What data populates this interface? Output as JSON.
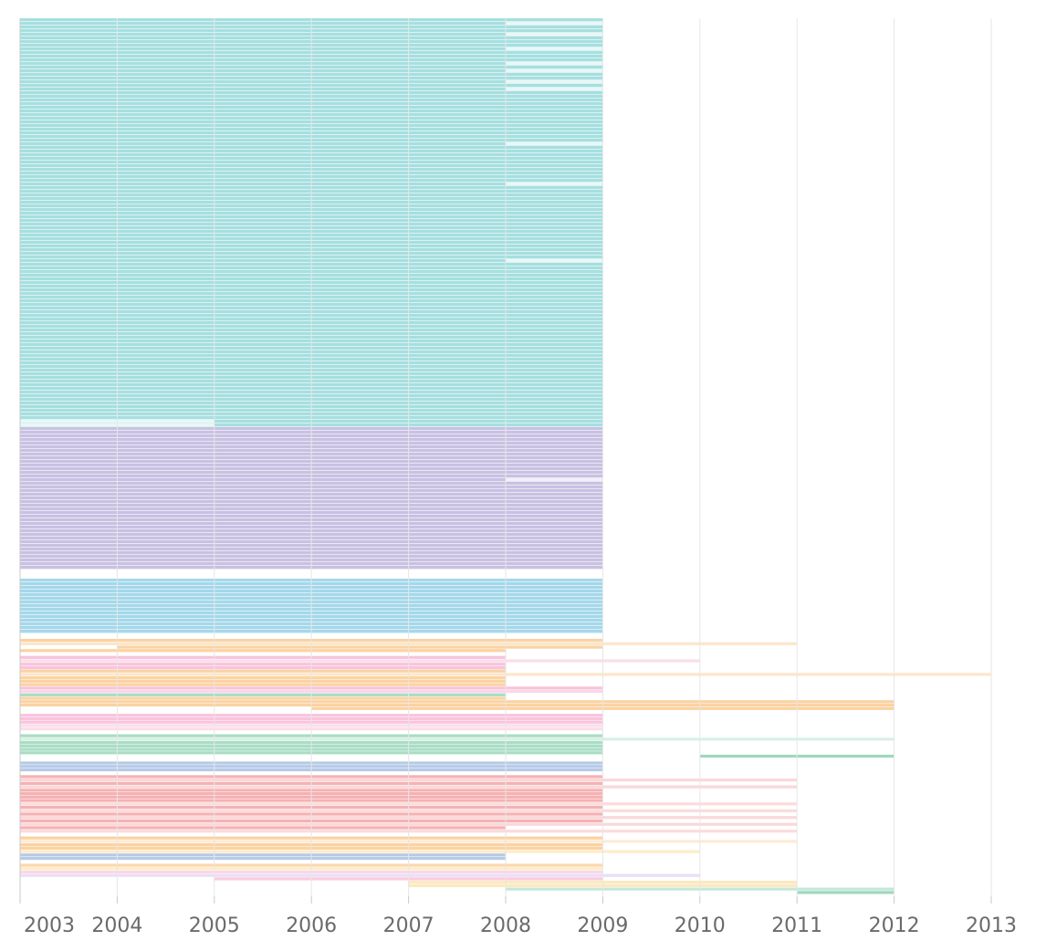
{
  "chart_data": {
    "type": "bar",
    "orientation": "horizontal-timeline",
    "x_ticks": [
      2003,
      2004,
      2005,
      2006,
      2007,
      2008,
      2009,
      2010,
      2011,
      2012,
      2013
    ],
    "x_tick_labels": [
      "2003",
      "2004",
      "2005",
      "2006",
      "2007",
      "2008",
      "2009",
      "2010",
      "2011",
      "2012",
      "2013"
    ],
    "xlim": [
      2002.7,
      2013.3
    ],
    "grid": true,
    "legend": "none",
    "colors": {
      "teal": "#a6dfe0",
      "purple": "#c9c1e2",
      "blue": "#a4d8ea",
      "orange": "#fbcd98",
      "pink": "#f8bdd8",
      "green": "#9ed9be",
      "steel": "#aec4e4",
      "red": "#f5a8aa",
      "lavender": "#e2d0ef",
      "yellow": "#fbe0a4",
      "gap": "#ffffff"
    },
    "groups": [
      {
        "color": "teal",
        "rows": 112,
        "start": 2003,
        "end": 2009
      },
      {
        "color": "purple",
        "rows": 39,
        "start": 2003,
        "end": 2009
      },
      {
        "color": "blue",
        "rows": 15,
        "start": 2003,
        "end": 2009
      }
    ],
    "segments": [
      {
        "row": 110,
        "color": "gap",
        "start": 2003,
        "end": 2005
      },
      {
        "row": 111,
        "color": "gap",
        "start": 2003,
        "end": 2005
      },
      {
        "row": 1,
        "color": "gap",
        "start": 2008,
        "end": 2009
      },
      {
        "row": 4,
        "color": "gap",
        "start": 2008,
        "end": 2009
      },
      {
        "row": 8,
        "color": "gap",
        "start": 2008,
        "end": 2009
      },
      {
        "row": 12,
        "color": "gap",
        "start": 2008,
        "end": 2009
      },
      {
        "row": 14,
        "color": "gap",
        "start": 2008,
        "end": 2009
      },
      {
        "row": 17,
        "color": "gap",
        "start": 2008,
        "end": 2009
      },
      {
        "row": 19,
        "color": "gap",
        "start": 2008,
        "end": 2009
      },
      {
        "row": 34,
        "color": "gap",
        "start": 2008,
        "end": 2009
      },
      {
        "row": 45,
        "color": "gap",
        "start": 2008,
        "end": 2009
      },
      {
        "row": 66,
        "color": "gap",
        "start": 2008,
        "end": 2009
      },
      {
        "row": 126,
        "color": "gap",
        "start": 2008,
        "end": 2009
      }
    ],
    "lower_rows": [
      {
        "color": "orange",
        "start": 2003,
        "end": 2009,
        "alpha": 0.9
      },
      {
        "color": "orange",
        "start": 2003,
        "end": 2011,
        "alpha": 0.5
      },
      {
        "color": "orange",
        "start": 2004,
        "end": 2009,
        "alpha": 0.9
      },
      {
        "color": "orange",
        "start": 2003,
        "end": 2008,
        "alpha": 0.9
      },
      {
        "color": "gap",
        "start": 2003,
        "end": 2009,
        "alpha": 1
      },
      {
        "color": "pink",
        "start": 2003,
        "end": 2008,
        "alpha": 0.9
      },
      {
        "color": "pink",
        "start": 2003,
        "end": 2010,
        "alpha": 0.5
      },
      {
        "color": "pink",
        "start": 2003,
        "end": 2008,
        "alpha": 0.9
      },
      {
        "color": "pink",
        "start": 2003,
        "end": 2008,
        "alpha": 0.9
      },
      {
        "color": "orange",
        "start": 2003,
        "end": 2008,
        "alpha": 0.9
      },
      {
        "color": "orange",
        "start": 2003,
        "end": 2013,
        "alpha": 0.5
      },
      {
        "color": "orange",
        "start": 2003,
        "end": 2008,
        "alpha": 0.9
      },
      {
        "color": "orange",
        "start": 2003,
        "end": 2008,
        "alpha": 0.9
      },
      {
        "color": "orange",
        "start": 2003,
        "end": 2008,
        "alpha": 0.9
      },
      {
        "color": "pink",
        "start": 2003,
        "end": 2009,
        "alpha": 0.9
      },
      {
        "color": "pink",
        "start": 2003,
        "end": 2009,
        "alpha": 0.6
      },
      {
        "color": "green",
        "start": 2003,
        "end": 2008,
        "alpha": 0.9
      },
      {
        "color": "orange",
        "start": 2003,
        "end": 2008,
        "alpha": 0.9
      },
      {
        "color": "orange",
        "start": 2003,
        "end": 2012,
        "alpha": 0.9
      },
      {
        "color": "orange",
        "start": 2003,
        "end": 2012,
        "alpha": 0.9
      },
      {
        "color": "orange",
        "start": 2006,
        "end": 2012,
        "alpha": 0.9
      },
      {
        "color": "gap",
        "start": 2003,
        "end": 2006,
        "alpha": 1
      },
      {
        "color": "pink",
        "start": 2003,
        "end": 2009,
        "alpha": 0.9
      },
      {
        "color": "pink",
        "start": 2003,
        "end": 2009,
        "alpha": 0.9
      },
      {
        "color": "pink",
        "start": 2003,
        "end": 2009,
        "alpha": 0.9
      },
      {
        "color": "pink",
        "start": 2003,
        "end": 2009,
        "alpha": 0.5
      },
      {
        "color": "pink",
        "start": 2003,
        "end": 2009,
        "alpha": 0.5
      },
      {
        "color": "gap",
        "start": 2003,
        "end": 2009,
        "alpha": 1
      },
      {
        "color": "green",
        "start": 2003,
        "end": 2009,
        "alpha": 0.9
      },
      {
        "color": "green",
        "start": 2003,
        "end": 2012,
        "alpha": 0.4
      },
      {
        "color": "green",
        "start": 2003,
        "end": 2009,
        "alpha": 0.9
      },
      {
        "color": "green",
        "start": 2003,
        "end": 2009,
        "alpha": 0.9
      },
      {
        "color": "green",
        "start": 2003,
        "end": 2009,
        "alpha": 0.9
      },
      {
        "color": "green",
        "start": 2003,
        "end": 2009,
        "alpha": 0.9
      },
      {
        "color": "green",
        "start": 2010,
        "end": 2012,
        "alpha": 1
      },
      {
        "color": "gap",
        "start": 2003,
        "end": 2009,
        "alpha": 1
      },
      {
        "color": "steel",
        "start": 2003,
        "end": 2009,
        "alpha": 0.9
      },
      {
        "color": "steel",
        "start": 2003,
        "end": 2009,
        "alpha": 0.9
      },
      {
        "color": "steel",
        "start": 2003,
        "end": 2009,
        "alpha": 0.9
      },
      {
        "color": "gap",
        "start": 2003,
        "end": 2009,
        "alpha": 1
      },
      {
        "color": "red",
        "start": 2003,
        "end": 2009,
        "alpha": 0.9
      },
      {
        "color": "red",
        "start": 2003,
        "end": 2011,
        "alpha": 0.45
      },
      {
        "color": "red",
        "start": 2003,
        "end": 2009,
        "alpha": 0.9
      },
      {
        "color": "red",
        "start": 2003,
        "end": 2011,
        "alpha": 0.45
      },
      {
        "color": "red",
        "start": 2003,
        "end": 2009,
        "alpha": 0.9
      },
      {
        "color": "red",
        "start": 2003,
        "end": 2009,
        "alpha": 0.9
      },
      {
        "color": "red",
        "start": 2003,
        "end": 2009,
        "alpha": 0.9
      },
      {
        "color": "red",
        "start": 2003,
        "end": 2009,
        "alpha": 0.9
      },
      {
        "color": "red",
        "start": 2003,
        "end": 2011,
        "alpha": 0.4
      },
      {
        "color": "red",
        "start": 2003,
        "end": 2009,
        "alpha": 0.9
      },
      {
        "color": "red",
        "start": 2003,
        "end": 2011,
        "alpha": 0.4
      },
      {
        "color": "red",
        "start": 2003,
        "end": 2009,
        "alpha": 0.9
      },
      {
        "color": "red",
        "start": 2003,
        "end": 2011,
        "alpha": 0.45
      },
      {
        "color": "red",
        "start": 2003,
        "end": 2009,
        "alpha": 0.9
      },
      {
        "color": "red",
        "start": 2003,
        "end": 2011,
        "alpha": 0.45
      },
      {
        "color": "red",
        "start": 2003,
        "end": 2008,
        "alpha": 0.9
      },
      {
        "color": "red",
        "start": 2003,
        "end": 2011,
        "alpha": 0.4
      },
      {
        "color": "gap",
        "start": 2003,
        "end": 2009,
        "alpha": 1
      },
      {
        "color": "orange",
        "start": 2003,
        "end": 2009,
        "alpha": 0.9
      },
      {
        "color": "orange",
        "start": 2003,
        "end": 2011,
        "alpha": 0.4
      },
      {
        "color": "orange",
        "start": 2003,
        "end": 2009,
        "alpha": 0.9
      },
      {
        "color": "orange",
        "start": 2003,
        "end": 2009,
        "alpha": 0.9
      },
      {
        "color": "yellow",
        "start": 2003,
        "end": 2010,
        "alpha": 0.6
      },
      {
        "color": "steel",
        "start": 2003,
        "end": 2008,
        "alpha": 0.9
      },
      {
        "color": "steel",
        "start": 2003,
        "end": 2008,
        "alpha": 0.9
      },
      {
        "color": "gap",
        "start": 2003,
        "end": 2009,
        "alpha": 1
      },
      {
        "color": "orange",
        "start": 2003,
        "end": 2009,
        "alpha": 0.8
      },
      {
        "color": "yellow",
        "start": 2003,
        "end": 2009,
        "alpha": 0.6
      },
      {
        "color": "pink",
        "start": 2003,
        "end": 2009,
        "alpha": 0.6
      },
      {
        "color": "lavender",
        "start": 2003,
        "end": 2010,
        "alpha": 0.7
      },
      {
        "color": "pink",
        "start": 2005,
        "end": 2009,
        "alpha": 0.8
      },
      {
        "color": "yellow",
        "start": 2007,
        "end": 2011,
        "alpha": 0.7
      },
      {
        "color": "yellow",
        "start": 2007,
        "end": 2011,
        "alpha": 0.7
      },
      {
        "color": "green",
        "start": 2008,
        "end": 2012,
        "alpha": 0.6
      },
      {
        "color": "green",
        "start": 2011,
        "end": 2012,
        "alpha": 1
      }
    ]
  }
}
